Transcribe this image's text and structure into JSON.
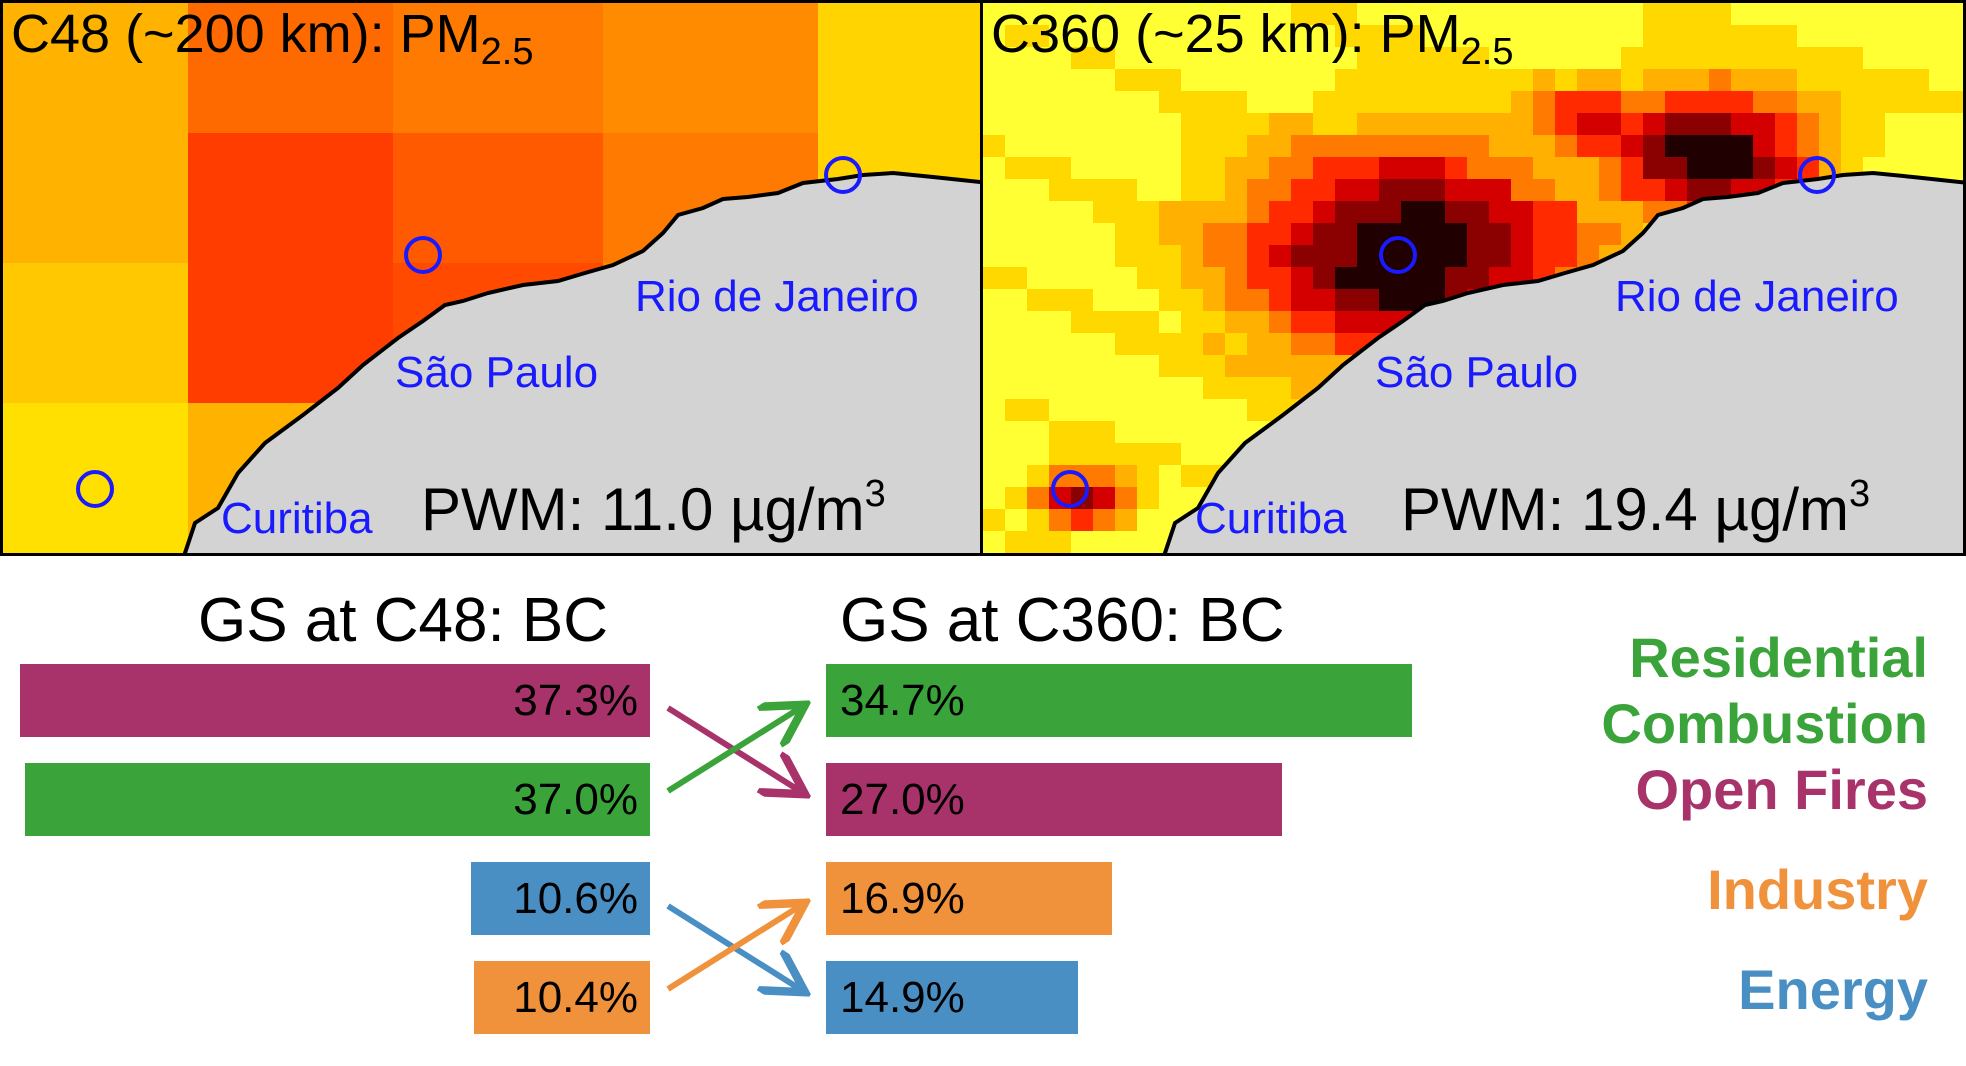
{
  "panels": [
    {
      "title_main": "C48 (~200 km): PM",
      "title_sub": "2.5",
      "pwm_prefix": "PWM: ",
      "pwm_value": "11.0",
      "pwm_unit": " µg/m",
      "pwm_exp": "3",
      "cities": {
        "sao_paulo": "São Paulo",
        "rio": "Rio de Janeiro",
        "curitiba": "Curitiba"
      }
    },
    {
      "title_main": "C360 (~25 km): PM",
      "title_sub": "2.5",
      "pwm_prefix": "PWM: ",
      "pwm_value": "19.4",
      "pwm_unit": " µg/m",
      "pwm_exp": "3",
      "cities": {
        "sao_paulo": "São Paulo",
        "rio": "Rio de Janeiro",
        "curitiba": "Curitiba"
      }
    }
  ],
  "chart_data": [
    {
      "type": "bar",
      "title": "GS at C48: BC",
      "categories": [
        "Open Fires",
        "Residential Combustion",
        "Energy",
        "Industry"
      ],
      "values": [
        37.3,
        37.0,
        10.6,
        10.4
      ],
      "labels": [
        "37.3%",
        "37.0%",
        "10.6%",
        "10.4%"
      ],
      "unit": "%"
    },
    {
      "type": "bar",
      "title": "GS at C360: BC",
      "categories": [
        "Residential Combustion",
        "Open Fires",
        "Industry",
        "Energy"
      ],
      "values": [
        34.7,
        27.0,
        16.9,
        14.9
      ],
      "labels": [
        "34.7%",
        "27.0%",
        "16.9%",
        "14.9%"
      ],
      "unit": "%"
    }
  ],
  "legend": [
    {
      "key": "res1",
      "label": "Residential",
      "color": "#3aa33a"
    },
    {
      "key": "res2",
      "label": "Combustion",
      "color": "#3aa33a"
    },
    {
      "key": "fires",
      "label": "Open Fires",
      "color": "#a8326a"
    },
    {
      "key": "industry",
      "label": "Industry",
      "color": "#f0923c"
    },
    {
      "key": "energy",
      "label": "Energy",
      "color": "#4a8fc4"
    }
  ],
  "colors": {
    "Residential Combustion": "#3aa33a",
    "Open Fires": "#a8326a",
    "Industry": "#f0923c",
    "Energy": "#4a8fc4",
    "land": "#d3d3d3",
    "city_marker": "#1a1aff"
  }
}
